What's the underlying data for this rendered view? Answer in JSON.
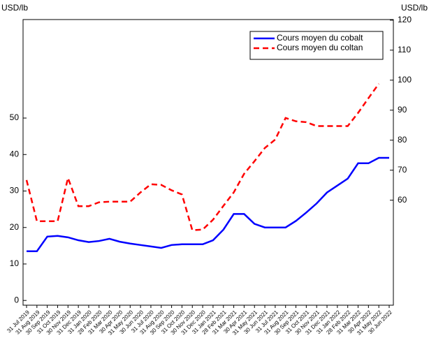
{
  "chart_data": {
    "type": "line",
    "left_axis_label": "USD/lb",
    "right_axis_label": "USD/lb",
    "categories": [
      "31 Jul 2019",
      "31 Aug 2019",
      "30 Sep 2019",
      "31 Oct 2019",
      "30 Nov 2019",
      "31 Dec 2019",
      "31 Jan 2020",
      "28 Feb 2020",
      "31 Mar 2020",
      "30 Apr 2020",
      "31 May 2020",
      "30 Jun 2020",
      "31 Jul 2020",
      "31 Aug 2020",
      "30 Sep 2020",
      "31 Oct 2020",
      "30 Nov 2020",
      "31 Dec 2020",
      "31 Jan 2021",
      "28 Feb 2021",
      "31 Mar 2021",
      "30 Apr 2021",
      "31 May 2021",
      "30 Jun 2021",
      "31 Jul 2021",
      "31 Aug 2021",
      "30 Sep 2021",
      "31 Oct 2021",
      "30 Nov 2021",
      "31 Dec 2021",
      "31 Jan 2022",
      "28 Feb 2022",
      "31 Mar 2022",
      "30 Apr 2022",
      "31 May 2022",
      "30 Jun 2022"
    ],
    "series": [
      {
        "name": "Cours moyen du cobalt",
        "color": "#0000ff",
        "dash": "solid",
        "axis": "y",
        "values": [
          13.5,
          13.5,
          17.5,
          17.7,
          17.3,
          16.5,
          16,
          16.3,
          16.9,
          16.1,
          15.6,
          15.2,
          14.8,
          14.4,
          15.2,
          15.4,
          15.4,
          15.4,
          16.5,
          19.4,
          23.7,
          23.7,
          21,
          20,
          20,
          20,
          21.8,
          24.1,
          26.6,
          29.6,
          31.5,
          33.4,
          37.6,
          37.6,
          39.1,
          39.1
        ]
      },
      {
        "name": "Cours moyen du coltan",
        "color": "#ff0000",
        "dash": "dashed",
        "axis": "y2",
        "values": [
          66.7,
          53,
          53,
          53,
          67.4,
          58,
          58,
          59.3,
          59.5,
          59.5,
          59.5,
          62.6,
          65.3,
          65.1,
          63.3,
          61.9,
          50,
          50.2,
          53.5,
          58.1,
          62.6,
          68.8,
          73,
          77.4,
          80.2,
          87.4,
          86.3,
          86,
          84.7,
          84.7,
          84.7,
          84.7,
          89.1,
          94,
          98.8,
          null
        ]
      }
    ],
    "ylim": [
      -1.3,
      77
    ],
    "yticks": [
      0,
      10,
      20,
      30,
      40,
      50
    ],
    "y2lim": [
      25,
      120.2
    ],
    "y2ticks": [
      60,
      70,
      80,
      90,
      100,
      110,
      120
    ],
    "legend": "top-right"
  }
}
